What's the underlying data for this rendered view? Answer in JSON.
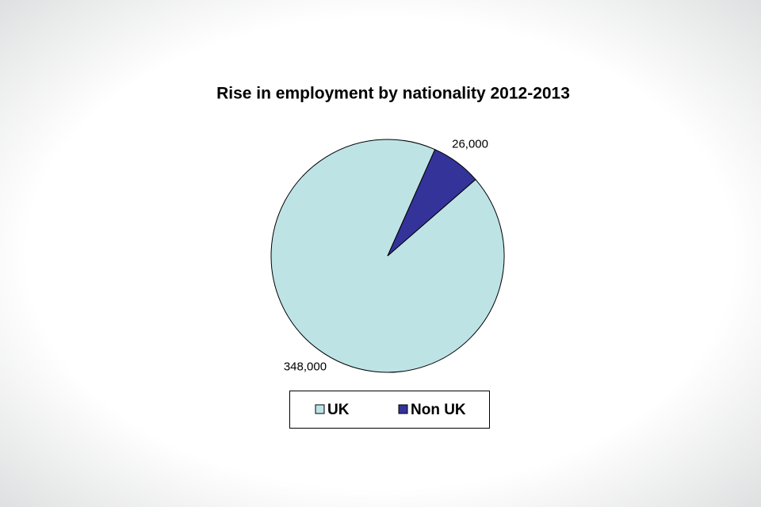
{
  "chart_data": {
    "type": "pie",
    "title": "Rise in employment by nationality 2012-2013",
    "categories": [
      "UK",
      "Non UK"
    ],
    "values": [
      348000,
      26000
    ],
    "value_labels": [
      "348,000",
      "26,000"
    ],
    "colors": [
      "#bde3e5",
      "#333399"
    ],
    "legend": "bottom"
  }
}
